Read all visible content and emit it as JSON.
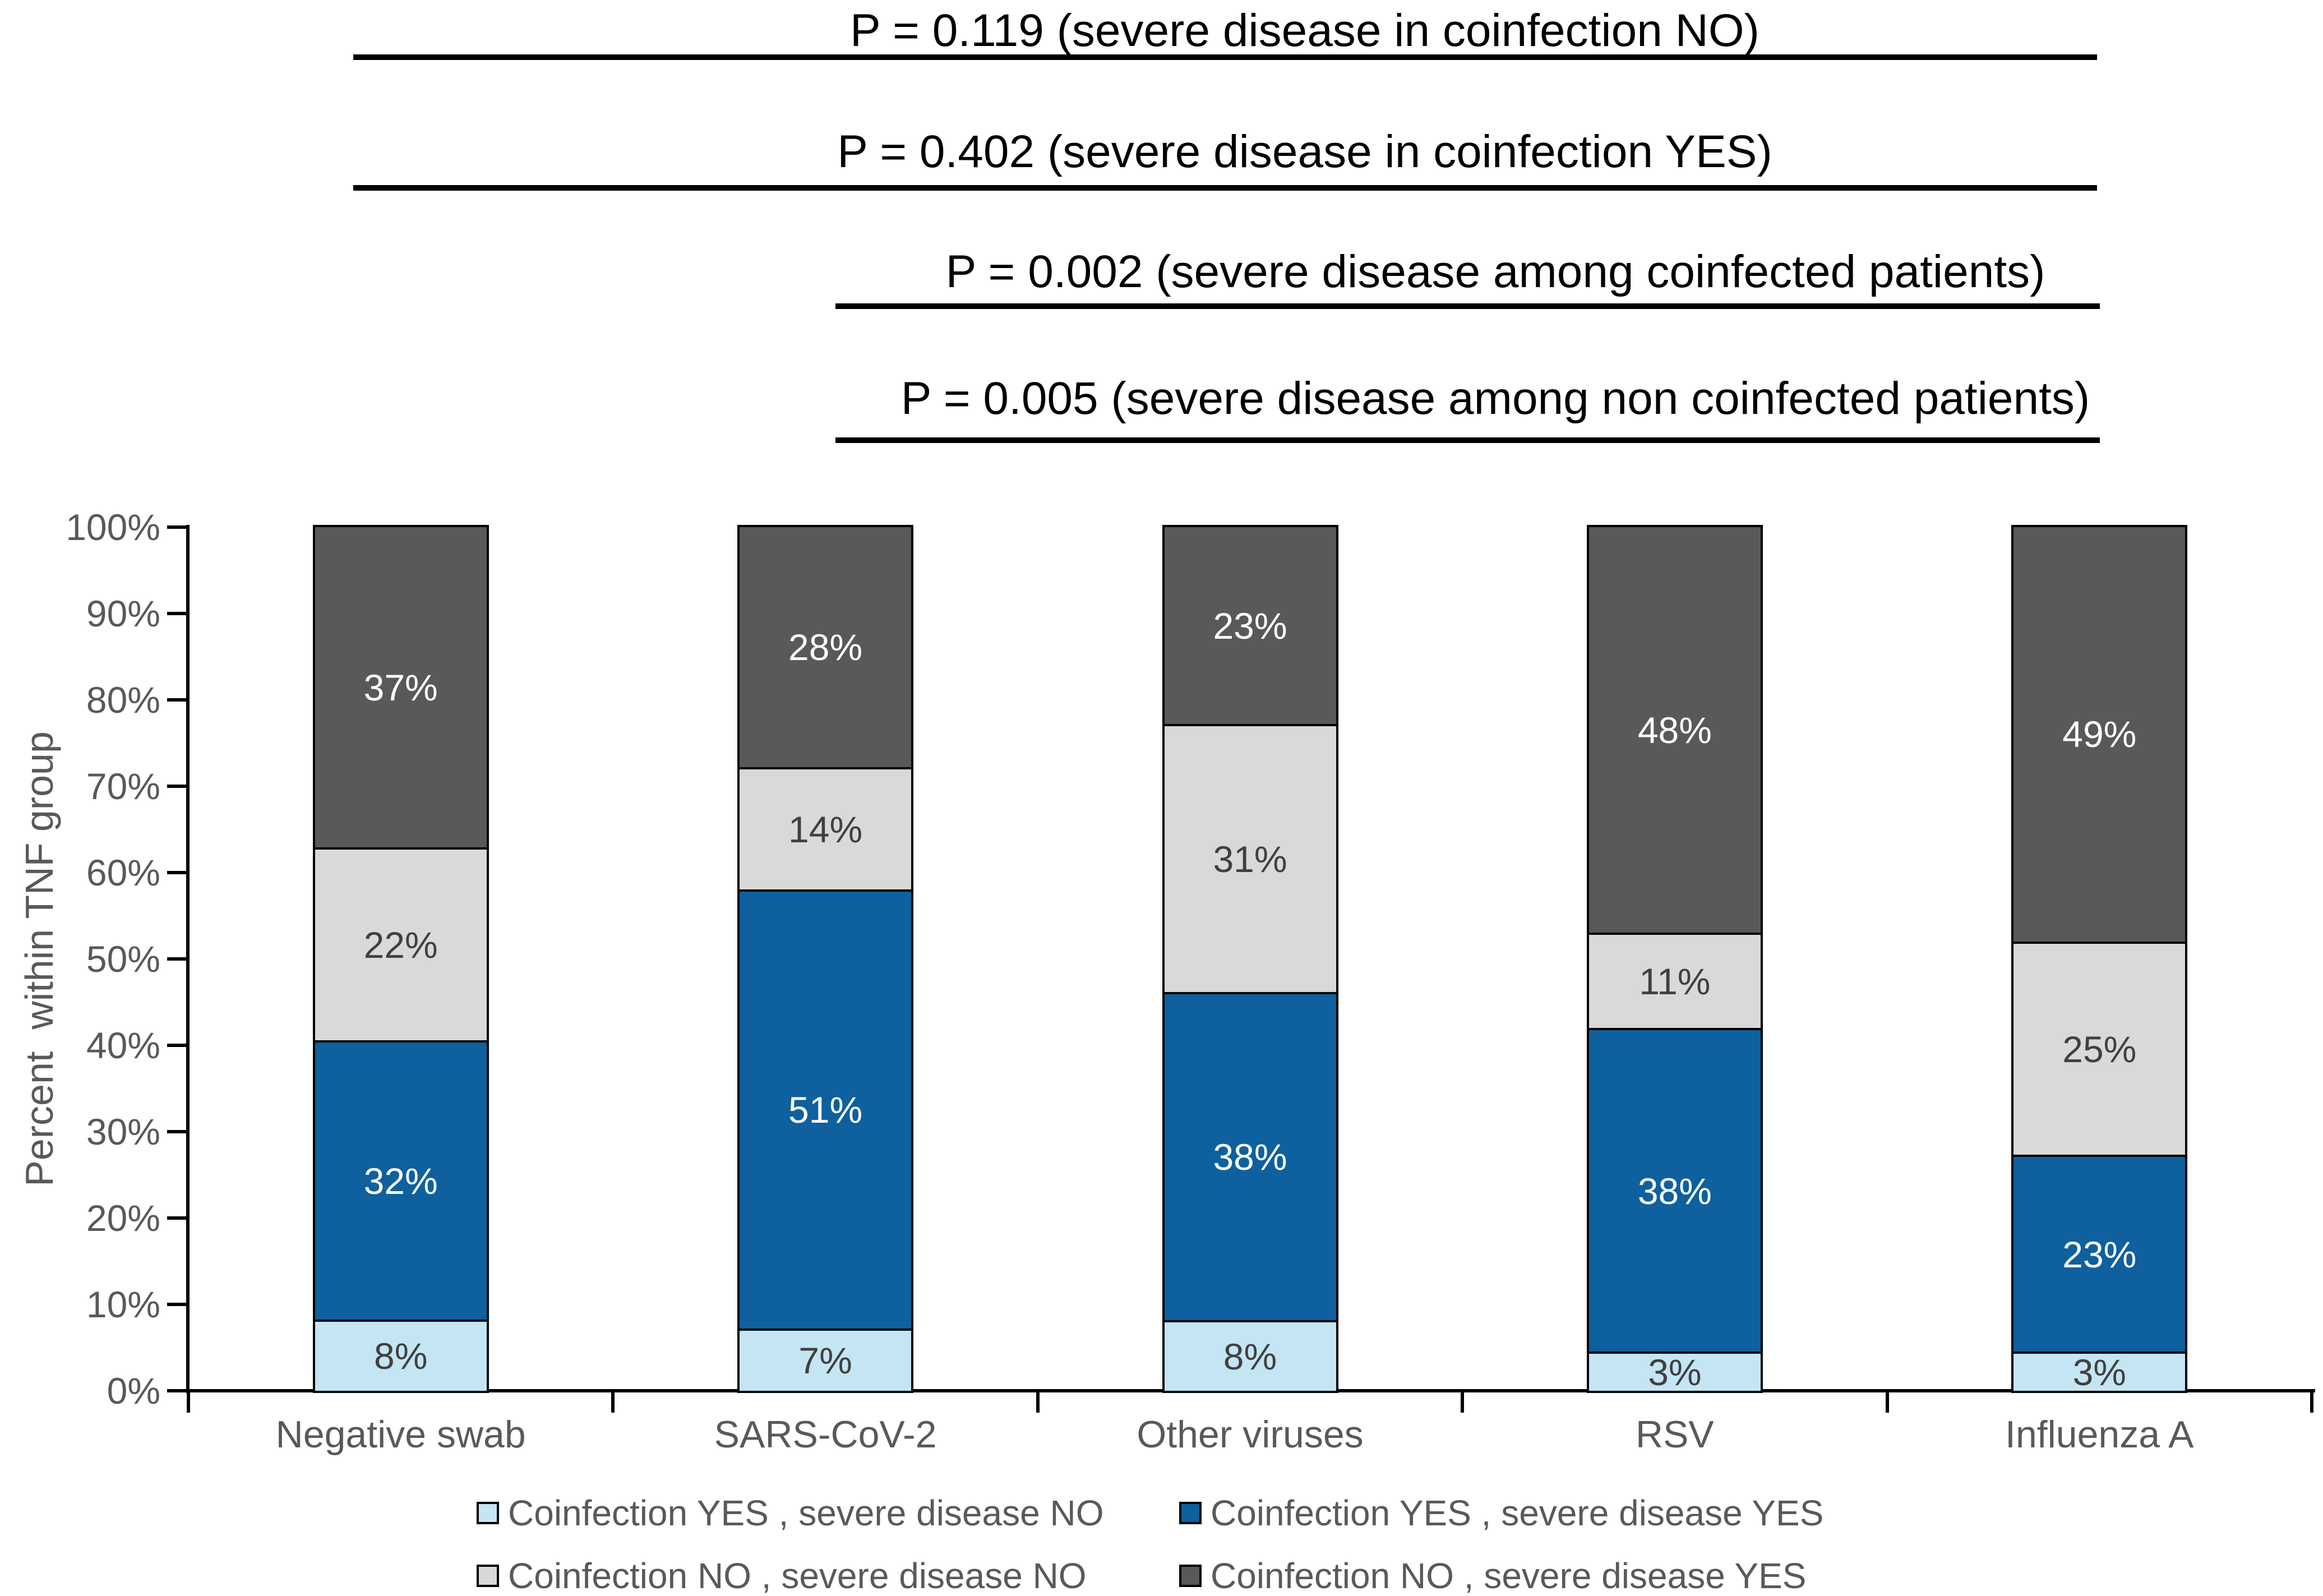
{
  "figure": {
    "background": "#ffffff",
    "axis_color": "#000000",
    "tick_label_color": "#595959",
    "dark_text_color": "#404040"
  },
  "chart_data": {
    "type": "bar",
    "stacked": true,
    "percent_stacked": true,
    "title": "",
    "xlabel": "",
    "ylabel": "Percent  within TNF group",
    "ylim": [
      0,
      100
    ],
    "grid": false,
    "legend_position": "bottom",
    "value_suffix": "%",
    "categories": [
      "Negative swab",
      "SARS-CoV-2",
      "Other viruses",
      "RSV",
      "Influenza A"
    ],
    "y_tick_labels": [
      "0%",
      "10%",
      "20%",
      "30%",
      "40%",
      "50%",
      "60%",
      "70%",
      "80%",
      "90%",
      "100%"
    ],
    "series": [
      {
        "name": "Coinfection YES , severe disease NO",
        "color": "#c4e5f3",
        "label_color": "#404040",
        "values": [
          8,
          7,
          8,
          3,
          3
        ]
      },
      {
        "name": "Coinfection YES , severe disease YES",
        "color": "#0e609e",
        "label_color": "#ffffff",
        "values": [
          32,
          51,
          38,
          38,
          23
        ]
      },
      {
        "name": "Coinfection NO , severe disease NO",
        "color": "#d9d9d9",
        "label_color": "#404040",
        "values": [
          22,
          14,
          31,
          11,
          25
        ]
      },
      {
        "name": "Coinfection NO , severe disease YES",
        "color": "#595959",
        "label_color": "#ffffff",
        "values": [
          37,
          28,
          23,
          48,
          49
        ]
      }
    ],
    "annotations": [
      {
        "text": "P = 0.119 (severe disease in coinfection NO)",
        "text_cx": 2327,
        "text_top": 12,
        "line_x1": 630,
        "line_x2": 3740,
        "line_top": 97
      },
      {
        "text": "P = 0.402 (severe disease in coinfection YES)",
        "text_cx": 2327,
        "text_top": 228,
        "line_x1": 630,
        "line_x2": 3740,
        "line_top": 330
      },
      {
        "text": "P = 0.002 (severe disease among coinfected patients)",
        "text_cx": 2667,
        "text_top": 442,
        "line_x1": 1490,
        "line_x2": 3745,
        "line_top": 541
      },
      {
        "text": "P = 0.005 (severe disease among non coinfected patients)",
        "text_cx": 2667,
        "text_top": 668,
        "line_x1": 1490,
        "line_x2": 3745,
        "line_top": 780
      }
    ],
    "legend_order": [
      0,
      1,
      2,
      3
    ]
  }
}
